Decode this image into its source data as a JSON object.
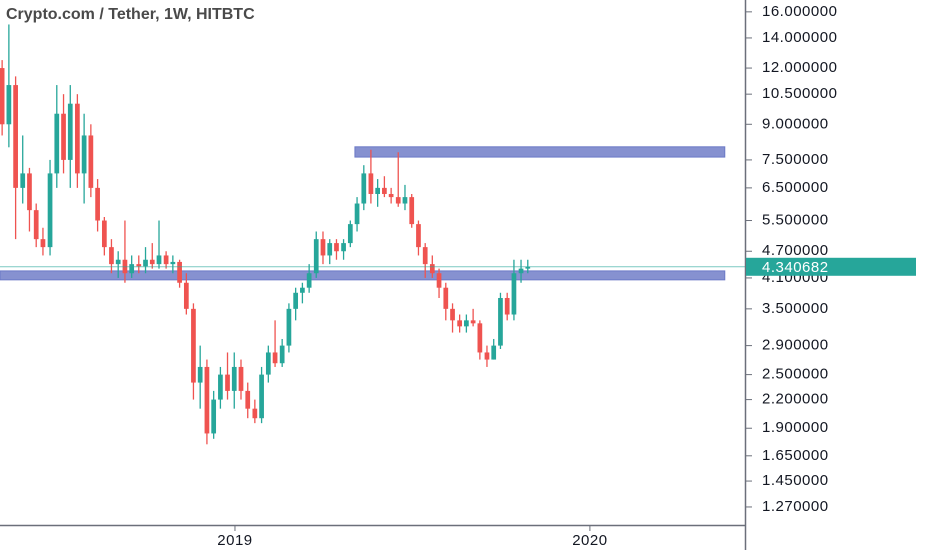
{
  "chart_data": {
    "type": "candlestick",
    "title": "Crypto.com / Tether, 1W, HITBTC",
    "x": [
      2018.344,
      2018.363,
      2018.382,
      2018.402,
      2018.421,
      2018.44,
      2018.459,
      2018.479,
      2018.498,
      2018.517,
      2018.536,
      2018.556,
      2018.575,
      2018.594,
      2018.613,
      2018.632,
      2018.652,
      2018.671,
      2018.69,
      2018.709,
      2018.729,
      2018.748,
      2018.767,
      2018.786,
      2018.806,
      2018.825,
      2018.844,
      2018.863,
      2018.883,
      2018.902,
      2018.921,
      2018.94,
      2018.959,
      2018.979,
      2018.998,
      2019.017,
      2019.036,
      2019.056,
      2019.075,
      2019.094,
      2019.113,
      2019.133,
      2019.152,
      2019.171,
      2019.19,
      2019.209,
      2019.229,
      2019.248,
      2019.267,
      2019.286,
      2019.306,
      2019.325,
      2019.344,
      2019.363,
      2019.383,
      2019.402,
      2019.421,
      2019.44,
      2019.46,
      2019.479,
      2019.498,
      2019.517,
      2019.536,
      2019.556,
      2019.575,
      2019.594,
      2019.613,
      2019.633,
      2019.652,
      2019.671,
      2019.69,
      2019.71,
      2019.729,
      2019.748,
      2019.767,
      2019.786,
      2019.806,
      2019.825
    ],
    "open": [
      12,
      9.0,
      11,
      6.5,
      7.0,
      5.8,
      5.0,
      4.8,
      7.0,
      9.5,
      7.5,
      10.0,
      7.0,
      8.5,
      6.5,
      5.5,
      4.8,
      4.4,
      4.5,
      4.2,
      4.4,
      4.35,
      4.5,
      4.4,
      4.6,
      4.4,
      4.45,
      4.0,
      3.5,
      2.4,
      2.6,
      1.85,
      2.2,
      2.5,
      2.3,
      2.6,
      2.3,
      2.1,
      2.0,
      2.5,
      2.8,
      2.65,
      2.9,
      3.5,
      3.8,
      3.9,
      4.2,
      5.0,
      4.6,
      4.9,
      4.7,
      4.9,
      5.4,
      6.0,
      7.0,
      6.3,
      6.5,
      6.3,
      6.2,
      6.0,
      6.2,
      5.4,
      4.8,
      4.4,
      4.2,
      3.9,
      3.5,
      3.3,
      3.2,
      3.3,
      3.25,
      2.8,
      2.7,
      2.9,
      3.7,
      3.4,
      4.2,
      4.3
    ],
    "high": [
      12.5,
      15.0,
      11.5,
      8.5,
      7.2,
      6.0,
      5.3,
      7.5,
      11.0,
      10.5,
      11.0,
      10.5,
      9.5,
      9.0,
      6.8,
      5.6,
      5.0,
      4.7,
      5.5,
      4.6,
      4.6,
      4.8,
      4.9,
      5.5,
      4.7,
      4.6,
      4.5,
      4.2,
      3.6,
      2.9,
      2.7,
      2.3,
      2.6,
      2.8,
      2.8,
      2.7,
      2.4,
      2.2,
      2.6,
      2.9,
      3.3,
      3.0,
      3.6,
      3.9,
      4.0,
      4.4,
      5.2,
      5.2,
      5.0,
      5.0,
      5.0,
      5.5,
      6.2,
      7.3,
      7.9,
      6.8,
      6.9,
      6.5,
      7.8,
      6.6,
      6.3,
      5.5,
      4.9,
      4.6,
      4.3,
      4.0,
      3.6,
      3.4,
      3.4,
      3.5,
      3.3,
      2.9,
      3.0,
      3.8,
      3.8,
      4.5,
      4.5,
      4.5
    ],
    "low": [
      8.5,
      8.0,
      5.0,
      6.0,
      5.2,
      4.8,
      4.6,
      4.6,
      6.5,
      7.0,
      6.5,
      6.5,
      6.0,
      6.2,
      5.2,
      4.6,
      4.2,
      4.1,
      4.0,
      4.1,
      4.2,
      4.2,
      4.3,
      4.3,
      4.3,
      4.2,
      3.9,
      3.4,
      2.2,
      2.1,
      1.75,
      1.8,
      2.1,
      2.2,
      2.1,
      2.2,
      2.0,
      1.95,
      1.95,
      2.4,
      2.6,
      2.6,
      2.8,
      3.3,
      3.6,
      3.8,
      4.1,
      4.4,
      4.4,
      4.5,
      4.5,
      4.8,
      5.2,
      5.8,
      6.0,
      5.9,
      6.2,
      6.0,
      5.9,
      5.8,
      5.3,
      4.6,
      4.1,
      4.1,
      3.7,
      3.3,
      3.1,
      3.1,
      3.1,
      3.2,
      2.7,
      2.6,
      2.7,
      2.85,
      3.3,
      3.3,
      4.0,
      4.2
    ],
    "close": [
      9.0,
      11.0,
      6.5,
      7.0,
      5.8,
      5.0,
      4.8,
      7.0,
      9.5,
      7.5,
      10.0,
      7.0,
      8.5,
      6.5,
      5.5,
      4.8,
      4.4,
      4.5,
      4.2,
      4.4,
      4.35,
      4.5,
      4.4,
      4.6,
      4.4,
      4.45,
      4.0,
      3.5,
      2.4,
      2.6,
      1.85,
      2.2,
      2.5,
      2.3,
      2.6,
      2.3,
      2.1,
      2.0,
      2.5,
      2.8,
      2.65,
      2.9,
      3.5,
      3.8,
      3.9,
      4.2,
      5.0,
      4.6,
      4.9,
      4.7,
      4.9,
      5.4,
      6.0,
      7.0,
      6.3,
      6.5,
      6.3,
      6.2,
      6.0,
      6.2,
      5.4,
      4.8,
      4.4,
      4.2,
      3.9,
      3.5,
      3.3,
      3.2,
      3.3,
      3.25,
      2.8,
      2.7,
      2.9,
      3.7,
      3.4,
      4.2,
      4.3,
      4.34
    ],
    "up_color": "#26a69a",
    "down_color": "#ef5350",
    "xlim": [
      2018.338,
      2020.437
    ],
    "xticks": [
      2019,
      2020
    ],
    "ylim": [
      1.158,
      17.0
    ],
    "log_y": true,
    "yticks": [
      {
        "value": 16,
        "label": "16.000000"
      },
      {
        "value": 14,
        "label": "14.000000"
      },
      {
        "value": 12,
        "label": "12.000000"
      },
      {
        "value": 10.5,
        "label": "10.500000"
      },
      {
        "value": 9,
        "label": "9.000000"
      },
      {
        "value": 7.5,
        "label": "7.500000"
      },
      {
        "value": 6.5,
        "label": "6.500000"
      },
      {
        "value": 5.5,
        "label": "5.500000"
      },
      {
        "value": 4.7,
        "label": "4.700000"
      },
      {
        "value": 4.1,
        "label": "4.100000"
      },
      {
        "value": 3.5,
        "label": "3.500000"
      },
      {
        "value": 2.9,
        "label": "2.900000"
      },
      {
        "value": 2.5,
        "label": "2.500000"
      },
      {
        "value": 2.2,
        "label": "2.200000"
      },
      {
        "value": 1.9,
        "label": "1.900000"
      },
      {
        "value": 1.65,
        "label": "1.650000"
      },
      {
        "value": 1.45,
        "label": "1.450000"
      },
      {
        "value": 1.27,
        "label": "1.270000"
      }
    ],
    "last_price": 4.340682,
    "last_price_color": "#26a69a",
    "zones": [
      {
        "low": 7.61,
        "high": 8.02,
        "x_start": 2019.338,
        "x_end": 2020.38,
        "color": "#7986cb"
      },
      {
        "low": 4.06,
        "high": 4.25,
        "x_start": 2018.338,
        "x_end": 2020.38,
        "color": "#7986cb"
      }
    ]
  }
}
